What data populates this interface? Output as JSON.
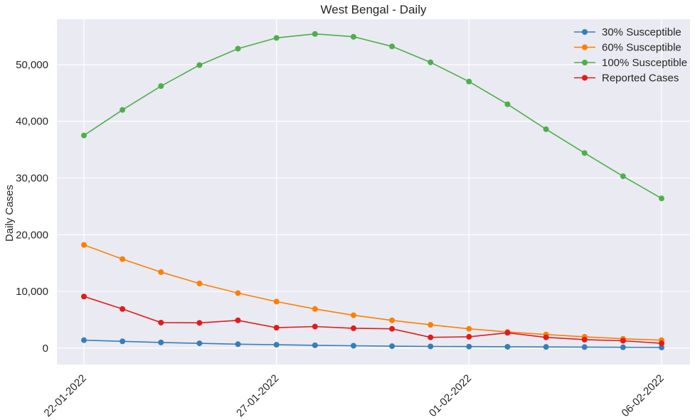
{
  "chart_data": {
    "type": "line",
    "title": "West Bengal - Daily",
    "xlabel": "",
    "ylabel": "Daily Cases",
    "x": [
      "22-01-2022",
      "23-01-2022",
      "24-01-2022",
      "25-01-2022",
      "26-01-2022",
      "27-01-2022",
      "28-01-2022",
      "29-01-2022",
      "30-01-2022",
      "31-01-2022",
      "01-02-2022",
      "02-02-2022",
      "03-02-2022",
      "04-02-2022",
      "05-02-2022",
      "06-02-2022"
    ],
    "x_ticks": [
      "22-01-2022",
      "27-01-2022",
      "01-02-2022",
      "06-02-2022"
    ],
    "ylim": [
      -2900,
      58000
    ],
    "y_ticks": [
      0,
      10000,
      20000,
      30000,
      40000,
      50000
    ],
    "y_tick_labels": [
      "0",
      "10,000",
      "20,000",
      "30,000",
      "40,000",
      "50,000"
    ],
    "grid": true,
    "legend_position": "top-right",
    "series": [
      {
        "name": "30% Susceptible",
        "color": "#377eb8",
        "values": [
          1400,
          1200,
          1000,
          850,
          700,
          600,
          500,
          420,
          350,
          300,
          270,
          240,
          210,
          180,
          150,
          120
        ]
      },
      {
        "name": "60% Susceptible",
        "color": "#ff7f00",
        "values": [
          18200,
          15700,
          13400,
          11400,
          9700,
          8200,
          6900,
          5800,
          4900,
          4100,
          3400,
          2850,
          2400,
          2000,
          1650,
          1400
        ]
      },
      {
        "name": "100% Susceptible",
        "color": "#4daf4a",
        "values": [
          37500,
          42000,
          46200,
          49900,
          52800,
          54700,
          55400,
          54900,
          53200,
          50400,
          47000,
          43000,
          38600,
          34400,
          30300,
          26400
        ]
      },
      {
        "name": "Reported Cases",
        "color": "#e41a1c",
        "values": [
          9100,
          6900,
          4500,
          4450,
          4900,
          3600,
          3800,
          3500,
          3400,
          1900,
          2000,
          2700,
          1900,
          1500,
          1300,
          850
        ]
      }
    ]
  }
}
